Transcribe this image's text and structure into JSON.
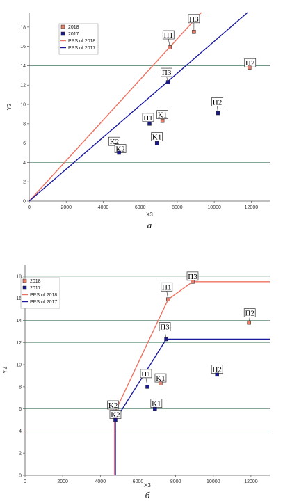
{
  "chart_data": [
    {
      "type": "scatter",
      "caption": "a",
      "xlabel": "X3",
      "ylabel": "Y2",
      "xlim": [
        0,
        13000
      ],
      "ylim": [
        0,
        19.5
      ],
      "x_ticks": [
        0,
        2000,
        4000,
        6000,
        8000,
        10000,
        12000
      ],
      "y_ticks": [
        0,
        2,
        4,
        6,
        8,
        10,
        12,
        14,
        16,
        18
      ],
      "legend": {
        "placement": "top-left",
        "entries": [
          {
            "label": "2018",
            "kind": "marker",
            "color": "#e8806e"
          },
          {
            "label": "2017",
            "kind": "marker",
            "color": "#1a1a8c"
          },
          {
            "label": "PPS of 2018",
            "kind": "line",
            "color": "#f07060"
          },
          {
            "label": "PPS of 2017",
            "kind": "line",
            "color": "#1a1aa0"
          }
        ]
      },
      "series": [
        {
          "name": "2018",
          "color": "#e8806e",
          "points": [
            {
              "label": "K2",
              "x": 4750,
              "y": 5.6
            },
            {
              "label": "П1",
              "x": 7600,
              "y": 15.9
            },
            {
              "label": "П3",
              "x": 8900,
              "y": 17.5
            },
            {
              "label": "K1",
              "x": 7200,
              "y": 8.3
            },
            {
              "label": "П2",
              "x": 11900,
              "y": 13.8
            }
          ]
        },
        {
          "name": "2017",
          "color": "#1a1a8c",
          "points": [
            {
              "label": "K2",
              "x": 4850,
              "y": 5.0
            },
            {
              "label": "П1",
              "x": 6500,
              "y": 8.0
            },
            {
              "label": "K1",
              "x": 6900,
              "y": 6.0
            },
            {
              "label": "П3",
              "x": 7500,
              "y": 12.3
            },
            {
              "label": "П2",
              "x": 10200,
              "y": 9.1
            }
          ]
        }
      ],
      "frontiers": [
        {
          "name": "PPS of 2018",
          "color": "#f07060",
          "points": [
            [
              0,
              0
            ],
            [
              9300,
              19.5
            ]
          ]
        },
        {
          "name": "PPS of 2017",
          "color": "#1a1aa0",
          "points": [
            [
              0,
              0
            ],
            [
              11800,
              19.5
            ]
          ]
        }
      ]
    },
    {
      "type": "scatter",
      "caption": "б",
      "xlabel": "X3",
      "ylabel": "Y2",
      "xlim": [
        0,
        13000
      ],
      "ylim": [
        0,
        19
      ],
      "x_ticks": [
        0,
        2000,
        4000,
        6000,
        8000,
        10000,
        12000
      ],
      "y_ticks": [
        0,
        2,
        4,
        6,
        8,
        10,
        12,
        14,
        16,
        18
      ],
      "legend": {
        "placement": "top-left",
        "entries": [
          {
            "label": "2018",
            "kind": "marker",
            "color": "#e8806e"
          },
          {
            "label": "2017",
            "kind": "marker",
            "color": "#1a1a8c"
          },
          {
            "label": "PPS of 2018",
            "kind": "line",
            "color": "#f07060"
          },
          {
            "label": "PPS of 2017",
            "kind": "line",
            "color": "#1a1aa0"
          }
        ]
      },
      "series": [
        {
          "name": "2018",
          "color": "#e8806e",
          "points": [
            {
              "label": "K2",
              "x": 4750,
              "y": 5.6
            },
            {
              "label": "П1",
              "x": 7600,
              "y": 15.9
            },
            {
              "label": "П3",
              "x": 8900,
              "y": 17.5
            },
            {
              "label": "K1",
              "x": 7200,
              "y": 8.3
            },
            {
              "label": "П2",
              "x": 11900,
              "y": 13.8
            }
          ]
        },
        {
          "name": "2017",
          "color": "#1a1a8c",
          "points": [
            {
              "label": "K2",
              "x": 4800,
              "y": 5.0
            },
            {
              "label": "П1",
              "x": 6500,
              "y": 8.0
            },
            {
              "label": "K1",
              "x": 6900,
              "y": 6.0
            },
            {
              "label": "П3",
              "x": 7500,
              "y": 12.3
            },
            {
              "label": "П2",
              "x": 10200,
              "y": 9.1
            }
          ]
        }
      ],
      "frontiers": [
        {
          "name": "PPS of 2018",
          "color": "#f07060",
          "points": [
            [
              4750,
              0
            ],
            [
              4750,
              5.6
            ],
            [
              7600,
              15.9
            ],
            [
              8900,
              17.5
            ],
            [
              13000,
              17.5
            ]
          ]
        },
        {
          "name": "PPS of 2017",
          "color": "#1a1aa0",
          "points": [
            [
              4800,
              0
            ],
            [
              4800,
              5.0
            ],
            [
              7500,
              12.3
            ],
            [
              13000,
              12.3
            ]
          ]
        }
      ]
    }
  ]
}
